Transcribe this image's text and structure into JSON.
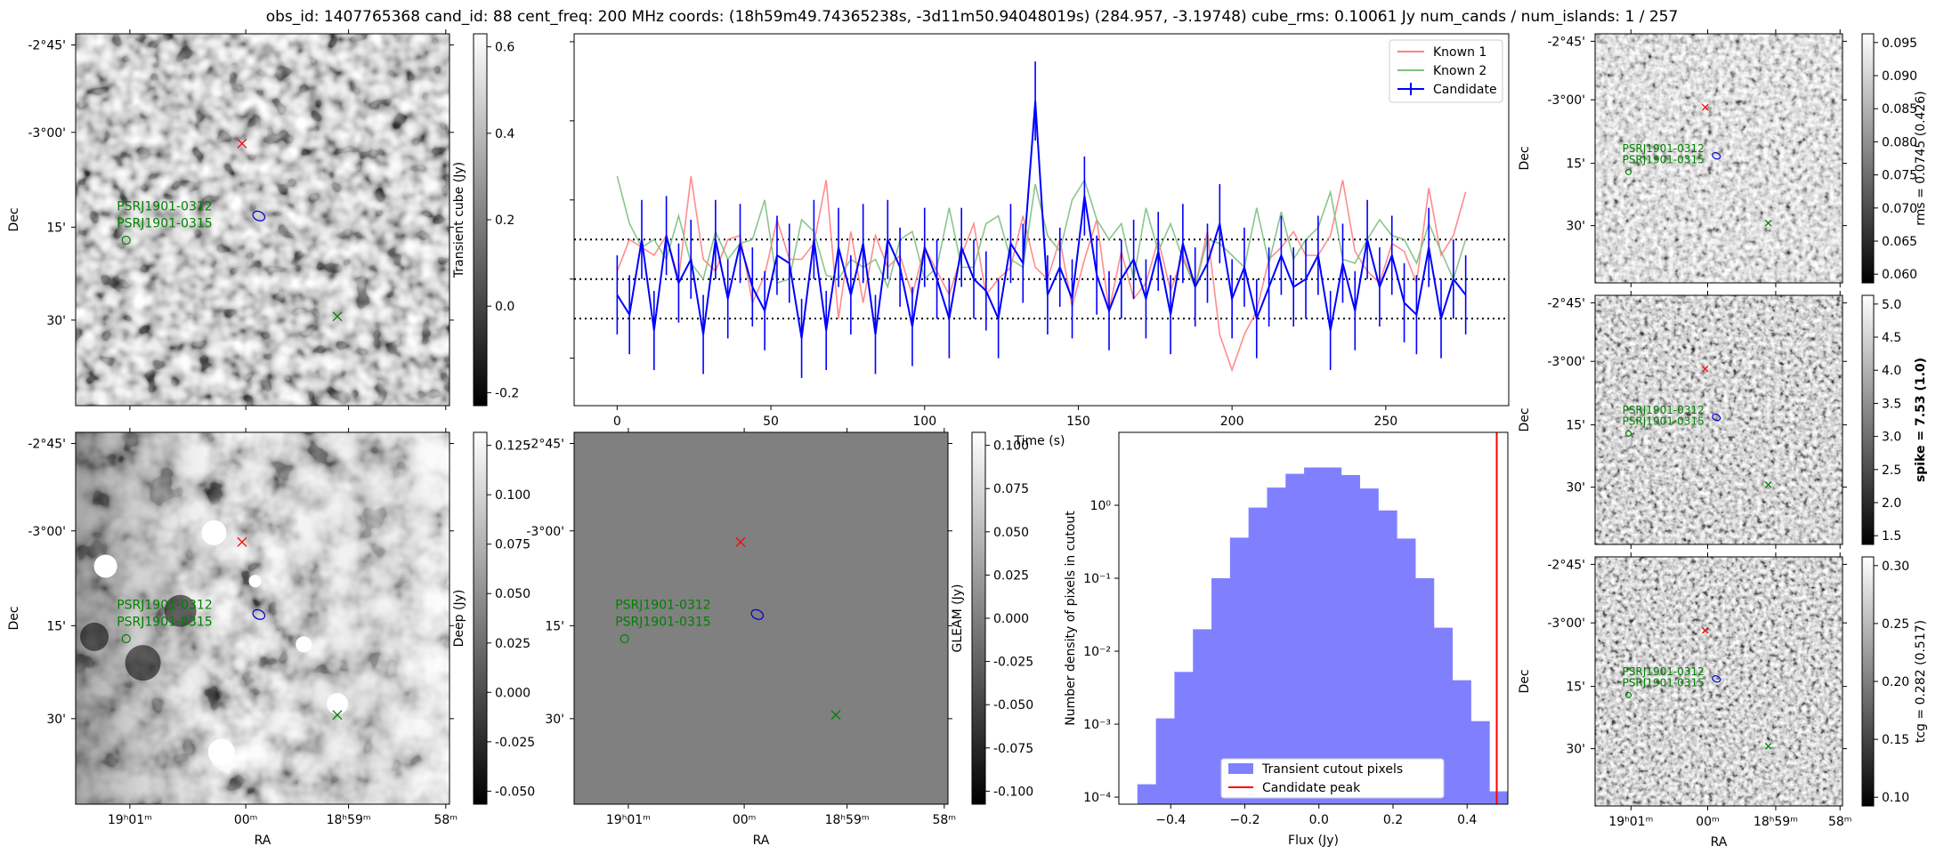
{
  "title": "obs_id: 1407765368 cand_id: 88 cent_freq: 200 MHz coords: (18h59m49.74365238s, -3d11m50.94048019s) (284.957, -3.19748) cube_rms: 0.10061 Jy num_cands / num_islands: 1 / 257",
  "colors": {
    "known1": "#ff7f7f",
    "known2": "#7fbf7f",
    "candidate": "#0000ff",
    "candidate_marker": "#ff0000",
    "pulsar": "#008000",
    "contour": "#0000cc",
    "hist_fill": "#8080ff",
    "peak_line": "#ff0000"
  },
  "sky_axes": {
    "ra_ticks": [
      "19ʰ01ᵐ",
      "00ᵐ",
      "18ʰ59ᵐ",
      "58ᵐ"
    ],
    "dec_ticks": [
      "-2°45'",
      "-3°00'",
      "15'",
      "30'"
    ],
    "ra_label": "RA",
    "dec_label": "Dec"
  },
  "pulsars": [
    "PSRJ1901-0312",
    "PSRJ1901-0315"
  ],
  "cutouts": [
    {
      "id": "transient",
      "colorbar_label": "Transient cube (Jy)",
      "colorbar_ticks": [
        "0.6",
        "0.4",
        "0.2",
        "0.0",
        "-0.2"
      ],
      "show_ra_ticks": false,
      "show_ra_label": false
    },
    {
      "id": "deep",
      "colorbar_label": "Deep (Jy)",
      "colorbar_ticks": [
        "0.125",
        "0.100",
        "0.075",
        "0.050",
        "0.025",
        "0.000",
        "-0.025",
        "-0.050"
      ],
      "show_ra_ticks": true,
      "show_ra_label": true
    },
    {
      "id": "gleam",
      "colorbar_label": "GLEAM (Jy)",
      "colorbar_ticks": [
        "0.100",
        "0.075",
        "0.050",
        "0.025",
        "0.000",
        "-0.025",
        "-0.050",
        "-0.075",
        "-0.100"
      ],
      "show_ra_ticks": true,
      "show_ra_label": true
    },
    {
      "id": "rms",
      "colorbar_label": "rms = 0.0745 (0.426)",
      "colorbar_ticks": [
        "0.095",
        "0.090",
        "0.085",
        "0.080",
        "0.075",
        "0.070",
        "0.065",
        "0.060"
      ],
      "show_ra_ticks": false,
      "show_ra_label": false
    },
    {
      "id": "spike",
      "colorbar_label": "spike = 7.53 (1.0)",
      "colorbar_ticks": [
        "5.0",
        "4.5",
        "4.0",
        "3.5",
        "3.0",
        "2.5",
        "2.0",
        "1.5"
      ],
      "show_ra_ticks": false,
      "show_ra_label": false
    },
    {
      "id": "tcg",
      "colorbar_label": "tcg = 0.282 (0.517)",
      "colorbar_ticks": [
        "0.30",
        "0.25",
        "0.20",
        "0.15",
        "0.10"
      ],
      "show_ra_ticks": true,
      "show_ra_label": true
    }
  ],
  "chart_data": [
    {
      "type": "line",
      "id": "lightcurve",
      "title": "",
      "xlabel": "Time (s)",
      "ylabel": "",
      "xlim": [
        -14,
        290
      ],
      "ylim": [
        -0.32,
        0.62
      ],
      "x_ticks": [
        0,
        50,
        100,
        150,
        200,
        250
      ],
      "rms_lines": [
        0.1,
        0.0,
        -0.1
      ],
      "x": [
        0,
        4,
        8,
        12,
        16,
        20,
        24,
        28,
        32,
        36,
        40,
        44,
        48,
        52,
        56,
        60,
        64,
        68,
        72,
        76,
        80,
        84,
        88,
        92,
        96,
        100,
        104,
        108,
        112,
        116,
        120,
        124,
        128,
        132,
        136,
        140,
        144,
        148,
        152,
        156,
        160,
        164,
        168,
        172,
        176,
        180,
        184,
        188,
        192,
        196,
        200,
        204,
        208,
        212,
        216,
        220,
        224,
        228,
        232,
        236,
        240,
        244,
        248,
        252,
        256,
        260,
        264,
        268,
        272,
        276
      ],
      "series": [
        {
          "name": "Known 1",
          "values": [
            0.02,
            0.1,
            0.08,
            0.06,
            0.11,
            0.0,
            0.26,
            0.05,
            0.02,
            0.1,
            0.11,
            -0.06,
            0.01,
            0.15,
            0.05,
            0.05,
            0.09,
            0.25,
            -0.1,
            0.12,
            -0.06,
            0.11,
            0.03,
            0.06,
            -0.04,
            0.08,
            0.02,
            -0.04,
            0.06,
            0.14,
            -0.04,
            0.0,
            0.03,
            0.16,
            0.03,
            0.0,
            0.1,
            -0.07,
            0.05,
            0.15,
            -0.08,
            0.07,
            -0.05,
            -0.01,
            0.1,
            -0.03,
            0.06,
            -0.02,
            0.12,
            -0.14,
            -0.23,
            -0.14,
            -0.08,
            0.05,
            0.08,
            0.12,
            0.06,
            0.06,
            0.11,
            0.25,
            0.07,
            0.02,
            -0.01,
            0.09,
            0.07,
            -0.01,
            0.23,
            0.06,
            0.11,
            0.22
          ]
        },
        {
          "name": "Known 2",
          "values": [
            0.26,
            0.14,
            0.08,
            0.1,
            0.05,
            0.16,
            0.04,
            0.0,
            0.12,
            0.05,
            0.09,
            0.1,
            0.2,
            -0.01,
            0.0,
            0.15,
            0.12,
            0.01,
            0.0,
            0.05,
            0.03,
            0.05,
            -0.02,
            0.1,
            0.12,
            0.0,
            0.03,
            0.18,
            0.03,
            0.03,
            0.14,
            0.16,
            0.05,
            0.03,
            0.24,
            0.11,
            0.07,
            0.2,
            0.25,
            0.15,
            0.1,
            0.14,
            0.0,
            0.18,
            0.07,
            0.14,
            0.05,
            -0.02,
            0.1,
            0.09,
            0.06,
            0.03,
            0.18,
            0.04,
            0.17,
            0.05,
            0.1,
            0.13,
            0.22,
            0.05,
            0.04,
            0.1,
            0.15,
            0.11,
            0.1,
            0.04,
            0.14,
            0.07,
            0.0,
            0.1
          ]
        },
        {
          "name": "Candidate",
          "values": [
            -0.04,
            -0.09,
            0.1,
            -0.13,
            0.11,
            -0.01,
            0.05,
            -0.14,
            0.1,
            -0.05,
            0.09,
            -0.02,
            -0.08,
            0.06,
            0.04,
            -0.15,
            0.1,
            -0.13,
            0.08,
            -0.04,
            0.09,
            -0.14,
            0.1,
            0.03,
            -0.12,
            0.08,
            0.0,
            -0.1,
            0.08,
            0.0,
            -0.03,
            -0.1,
            0.09,
            0.04,
            0.45,
            -0.04,
            0.03,
            -0.05,
            0.21,
            0.01,
            -0.08,
            0.0,
            0.05,
            -0.05,
            0.07,
            -0.09,
            0.09,
            -0.02,
            0.04,
            0.14,
            -0.05,
            0.03,
            -0.1,
            -0.02,
            0.06,
            -0.02,
            0.0,
            0.06,
            -0.13,
            0.04,
            -0.08,
            0.1,
            -0.02,
            0.06,
            -0.06,
            -0.09,
            0.08,
            -0.1,
            0.0,
            -0.04
          ],
          "errors": 0.1
        }
      ],
      "legend": "top-right"
    },
    {
      "type": "bar",
      "id": "histogram",
      "title": "",
      "xlabel": "Flux (Jy)",
      "ylabel": "Number density of pixels in cutout",
      "yscale": "log",
      "xlim": [
        -0.54,
        0.51
      ],
      "ylim": [
        8e-05,
        10
      ],
      "x_ticks": [
        -0.4,
        -0.2,
        0.0,
        0.2,
        0.4
      ],
      "x_tick_labels": [
        "−0.4",
        "−0.2",
        "0.0",
        "0.2",
        "0.4"
      ],
      "y_ticks": [
        0.0001,
        0.001,
        0.01,
        0.1,
        1
      ],
      "y_tick_labels": [
        "10⁻⁴",
        "10⁻³",
        "10⁻²",
        "10⁻¹",
        "10⁰"
      ],
      "bin_edges": [
        -0.49,
        -0.44,
        -0.39,
        -0.34,
        -0.29,
        -0.24,
        -0.19,
        -0.14,
        -0.09,
        -0.04,
        0.01,
        0.06,
        0.11,
        0.16,
        0.21,
        0.26,
        0.31,
        0.36,
        0.41,
        0.46
      ],
      "values": [
        0.00015,
        0.0012,
        0.0052,
        0.02,
        0.1,
        0.36,
        0.93,
        1.75,
        2.7,
        3.3,
        3.3,
        2.6,
        1.7,
        0.85,
        0.35,
        0.1,
        0.021,
        0.004,
        0.0011,
        0.00012
      ],
      "peak": 0.48,
      "legend_entries": [
        "Transient cutout pixels",
        "Candidate peak"
      ],
      "legend": "lower-center"
    }
  ]
}
